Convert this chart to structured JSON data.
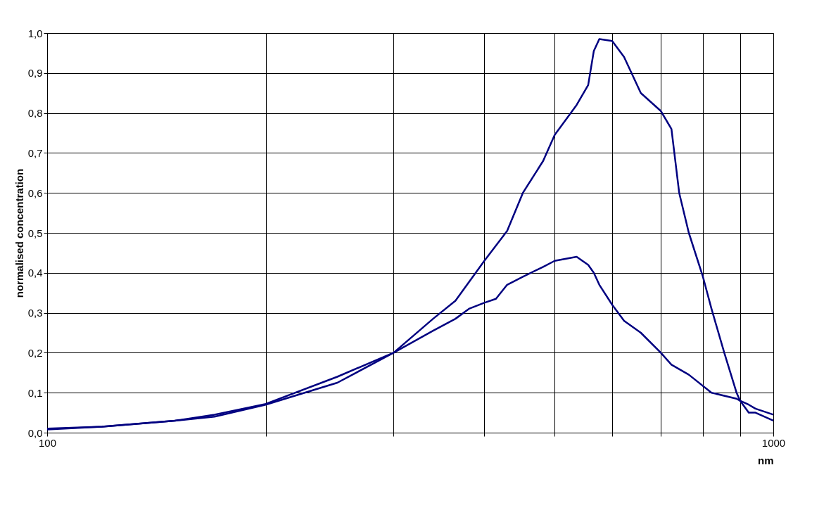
{
  "chart_data": {
    "type": "line",
    "xlabel": "nm",
    "ylabel": "normalised concentration",
    "log": "x",
    "grid": true,
    "line_style": "solid",
    "marker": "none",
    "xlim": [
      100,
      1000
    ],
    "ylim": [
      0,
      1
    ],
    "xticks": [
      100,
      {
        "value": 200,
        "label": null
      },
      {
        "value": 300,
        "label": null
      },
      {
        "value": 400,
        "label": null
      },
      {
        "value": 500,
        "label": null
      },
      {
        "value": 600,
        "label": null
      },
      {
        "value": 700,
        "label": null
      },
      {
        "value": 800,
        "label": null
      },
      {
        "value": 900,
        "label": null
      },
      1000
    ],
    "yticks": [
      {
        "value": 0,
        "label": "0,0"
      },
      {
        "value": 0.1,
        "label": "0,1"
      },
      {
        "value": 0.2,
        "label": "0,2"
      },
      {
        "value": 0.3,
        "label": "0,3"
      },
      {
        "value": 0.4,
        "label": "0,4"
      },
      {
        "value": 0.5,
        "label": "0,5"
      },
      {
        "value": 0.6,
        "label": "0,6"
      },
      {
        "value": 0.7,
        "label": "0,7"
      },
      {
        "value": 0.8,
        "label": "0,8"
      },
      {
        "value": 0.9,
        "label": "0,9"
      },
      {
        "value": 1,
        "label": "1,0"
      }
    ],
    "series": [
      {
        "color": "#000080",
        "x": [
          100,
          119,
          150,
          170,
          200,
          251,
          300,
          340,
          365,
          400,
          430,
          452,
          482,
          500,
          536,
          556,
          566,
          576,
          600,
          623,
          657,
          700,
          724,
          742,
          765,
          800,
          822,
          856,
          890,
          900,
          925,
          945,
          1000
        ],
        "values": [
          0.01,
          0.015,
          0.03,
          0.045,
          0.072,
          0.14,
          0.2,
          0.285,
          0.33,
          0.43,
          0.505,
          0.6,
          0.68,
          0.745,
          0.82,
          0.87,
          0.955,
          0.985,
          0.98,
          0.94,
          0.85,
          0.805,
          0.76,
          0.6,
          0.5,
          0.39,
          0.31,
          0.2,
          0.1,
          0.08,
          0.05,
          0.05,
          0.03
        ]
      },
      {
        "color": "#000080",
        "x": [
          100,
          119,
          150,
          170,
          200,
          251,
          300,
          340,
          365,
          381,
          400,
          415,
          430,
          452,
          482,
          500,
          536,
          556,
          566,
          576,
          600,
          623,
          657,
          700,
          724,
          765,
          822,
          890,
          900,
          925,
          945,
          1000
        ],
        "values": [
          0.008,
          0.015,
          0.03,
          0.04,
          0.07,
          0.125,
          0.2,
          0.255,
          0.285,
          0.31,
          0.325,
          0.335,
          0.37,
          0.39,
          0.415,
          0.43,
          0.44,
          0.42,
          0.4,
          0.37,
          0.32,
          0.28,
          0.25,
          0.2,
          0.17,
          0.145,
          0.1,
          0.085,
          0.08,
          0.07,
          0.06,
          0.045
        ]
      }
    ]
  }
}
